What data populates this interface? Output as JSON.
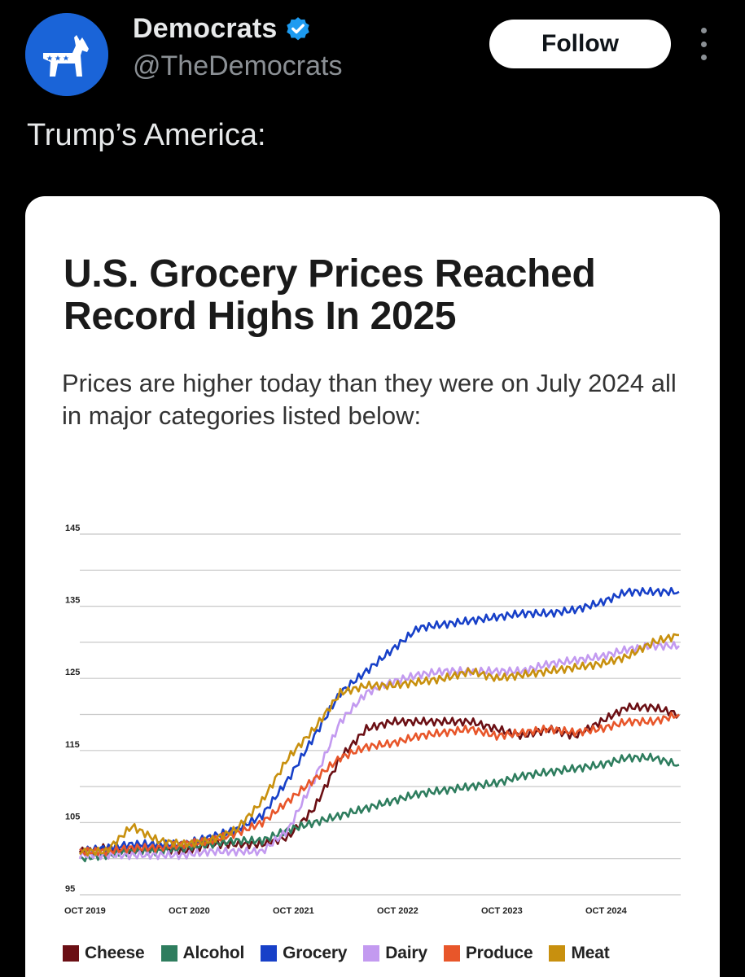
{
  "post": {
    "display_name": "Democrats",
    "handle": "@TheDemocrats",
    "follow_label": "Follow",
    "text": "Trump’s America:",
    "avatar_icon": "donkey-logo-icon",
    "verified_icon": "verified-badge-icon",
    "more_icon": "more-vertical-icon"
  },
  "colors": {
    "background": "#000000",
    "avatar_bg": "#1a64d8",
    "verified": "#1d9bf0",
    "card_bg": "#ffffff"
  },
  "card": {
    "title": "U.S. Grocery Prices Reached Record Highs In 2025",
    "subtitle": "Prices are higher today than they were on July 2024 all in major categories listed below:"
  },
  "chart_data": {
    "type": "line",
    "title": "U.S. Grocery Prices Reached Record Highs In 2025",
    "subtitle": "Prices are higher today than they were on July 2024 all in major categories listed below:",
    "xlabel": "",
    "ylabel": "",
    "ylim": [
      95,
      145
    ],
    "yticks": [
      95,
      105,
      115,
      125,
      135,
      145
    ],
    "xlim": [
      "2019-10",
      "2025-07"
    ],
    "xticks": [
      "OCT 2019",
      "OCT 2020",
      "OCT 2021",
      "OCT 2022",
      "OCT 2023",
      "OCT 2024"
    ],
    "grid": true,
    "legend": "bottom",
    "series": [
      {
        "name": "Cheese",
        "color": "#6b0f14",
        "points": [
          [
            "2019-10",
            101
          ],
          [
            "2020-01",
            101.5
          ],
          [
            "2020-04",
            101
          ],
          [
            "2020-07",
            101.5
          ],
          [
            "2020-10",
            101
          ],
          [
            "2021-01",
            102
          ],
          [
            "2021-04",
            102
          ],
          [
            "2021-07",
            102
          ],
          [
            "2021-10",
            103
          ],
          [
            "2022-01",
            107
          ],
          [
            "2022-04",
            114
          ],
          [
            "2022-07",
            118
          ],
          [
            "2022-10",
            119
          ],
          [
            "2023-01",
            119
          ],
          [
            "2023-04",
            119
          ],
          [
            "2023-07",
            119
          ],
          [
            "2023-10",
            118
          ],
          [
            "2024-01",
            117
          ],
          [
            "2024-04",
            118
          ],
          [
            "2024-07",
            117
          ],
          [
            "2024-10",
            119
          ],
          [
            "2025-01",
            121
          ],
          [
            "2025-04",
            121
          ],
          [
            "2025-07",
            120
          ]
        ]
      },
      {
        "name": "Alcohol",
        "color": "#2e7d5e",
        "points": [
          [
            "2019-10",
            100
          ],
          [
            "2020-01",
            100.5
          ],
          [
            "2020-04",
            101
          ],
          [
            "2020-07",
            101
          ],
          [
            "2020-10",
            101.5
          ],
          [
            "2021-01",
            102
          ],
          [
            "2021-04",
            102.5
          ],
          [
            "2021-07",
            102.5
          ],
          [
            "2021-10",
            104
          ],
          [
            "2022-01",
            105
          ],
          [
            "2022-04",
            106
          ],
          [
            "2022-07",
            107
          ],
          [
            "2022-10",
            108
          ],
          [
            "2023-01",
            109
          ],
          [
            "2023-04",
            109.5
          ],
          [
            "2023-07",
            110
          ],
          [
            "2023-10",
            110.5
          ],
          [
            "2024-01",
            111.5
          ],
          [
            "2024-04",
            112
          ],
          [
            "2024-07",
            112.5
          ],
          [
            "2024-10",
            113
          ],
          [
            "2025-01",
            114
          ],
          [
            "2025-04",
            114
          ],
          [
            "2025-07",
            113
          ]
        ]
      },
      {
        "name": "Grocery",
        "color": "#1740c8",
        "points": [
          [
            "2019-10",
            101
          ],
          [
            "2020-01",
            101.5
          ],
          [
            "2020-04",
            102
          ],
          [
            "2020-07",
            102
          ],
          [
            "2020-10",
            102
          ],
          [
            "2021-01",
            103
          ],
          [
            "2021-04",
            104
          ],
          [
            "2021-07",
            106
          ],
          [
            "2021-10",
            111
          ],
          [
            "2022-01",
            117
          ],
          [
            "2022-04",
            123
          ],
          [
            "2022-07",
            126
          ],
          [
            "2022-10",
            129
          ],
          [
            "2023-01",
            132
          ],
          [
            "2023-04",
            132.5
          ],
          [
            "2023-07",
            133
          ],
          [
            "2023-10",
            133.5
          ],
          [
            "2024-01",
            134
          ],
          [
            "2024-04",
            134
          ],
          [
            "2024-07",
            134.5
          ],
          [
            "2024-10",
            135.5
          ],
          [
            "2025-01",
            137
          ],
          [
            "2025-04",
            137
          ],
          [
            "2025-07",
            137
          ]
        ]
      },
      {
        "name": "Dairy",
        "color": "#c39af0",
        "points": [
          [
            "2019-10",
            100.5
          ],
          [
            "2020-01",
            100.5
          ],
          [
            "2020-04",
            100.5
          ],
          [
            "2020-07",
            100.5
          ],
          [
            "2020-10",
            100.5
          ],
          [
            "2021-01",
            101
          ],
          [
            "2021-04",
            101
          ],
          [
            "2021-07",
            101
          ],
          [
            "2021-10",
            104
          ],
          [
            "2022-01",
            111
          ],
          [
            "2022-04",
            119
          ],
          [
            "2022-07",
            123
          ],
          [
            "2022-10",
            124.5
          ],
          [
            "2023-01",
            125.5
          ],
          [
            "2023-04",
            126
          ],
          [
            "2023-07",
            126
          ],
          [
            "2023-10",
            126
          ],
          [
            "2024-01",
            126
          ],
          [
            "2024-04",
            127
          ],
          [
            "2024-07",
            127.5
          ],
          [
            "2024-10",
            128
          ],
          [
            "2025-01",
            129
          ],
          [
            "2025-04",
            129.5
          ],
          [
            "2025-07",
            129.5
          ]
        ]
      },
      {
        "name": "Produce",
        "color": "#e8562a",
        "points": [
          [
            "2019-10",
            101
          ],
          [
            "2020-01",
            101
          ],
          [
            "2020-04",
            101.5
          ],
          [
            "2020-07",
            101.5
          ],
          [
            "2020-10",
            102
          ],
          [
            "2021-01",
            102.5
          ],
          [
            "2021-04",
            103.5
          ],
          [
            "2021-07",
            105
          ],
          [
            "2021-10",
            108
          ],
          [
            "2022-01",
            111
          ],
          [
            "2022-04",
            114
          ],
          [
            "2022-07",
            115.5
          ],
          [
            "2022-10",
            116
          ],
          [
            "2023-01",
            117
          ],
          [
            "2023-04",
            117.5
          ],
          [
            "2023-07",
            118
          ],
          [
            "2023-10",
            117
          ],
          [
            "2024-01",
            117.5
          ],
          [
            "2024-04",
            118
          ],
          [
            "2024-07",
            117.5
          ],
          [
            "2024-10",
            118
          ],
          [
            "2025-01",
            119
          ],
          [
            "2025-04",
            119
          ],
          [
            "2025-07",
            120
          ]
        ]
      },
      {
        "name": "Meat",
        "color": "#c8900e",
        "points": [
          [
            "2019-10",
            101
          ],
          [
            "2020-01",
            101
          ],
          [
            "2020-04",
            104.5
          ],
          [
            "2020-07",
            102.5
          ],
          [
            "2020-10",
            102
          ],
          [
            "2021-01",
            102.5
          ],
          [
            "2021-04",
            104
          ],
          [
            "2021-07",
            108
          ],
          [
            "2021-10",
            114
          ],
          [
            "2022-01",
            118
          ],
          [
            "2022-04",
            123
          ],
          [
            "2022-07",
            124
          ],
          [
            "2022-10",
            124
          ],
          [
            "2023-01",
            124.5
          ],
          [
            "2023-04",
            125
          ],
          [
            "2023-07",
            126
          ],
          [
            "2023-10",
            125
          ],
          [
            "2024-01",
            125.5
          ],
          [
            "2024-04",
            126
          ],
          [
            "2024-07",
            126.5
          ],
          [
            "2024-10",
            127
          ],
          [
            "2025-01",
            128
          ],
          [
            "2025-04",
            130
          ],
          [
            "2025-07",
            131
          ]
        ]
      }
    ]
  }
}
